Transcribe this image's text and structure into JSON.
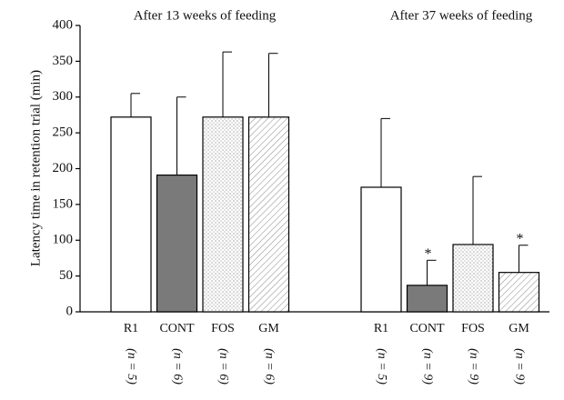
{
  "chart_data": {
    "type": "bar",
    "ylabel": "Latency time in retention trial (min)",
    "ylim": [
      0,
      400
    ],
    "yticks": [
      0,
      50,
      100,
      150,
      200,
      250,
      300,
      350,
      400
    ],
    "patterns": [
      "white",
      "solid",
      "dots",
      "hatch"
    ],
    "solid_color": "#7a7a7a",
    "groups": [
      {
        "title": "After 13 weeks of feeding",
        "categories": [
          "R1",
          "CONT",
          "FOS",
          "GM"
        ],
        "sample_sizes": [
          "(n = 5)",
          "(n = 6)",
          "(n = 6)",
          "(n = 6)"
        ],
        "values": [
          272,
          191,
          272,
          272
        ],
        "errors": [
          33,
          109,
          91,
          89
        ],
        "annotations": [
          null,
          null,
          null,
          null
        ]
      },
      {
        "title": "After 37 weeks of feeding",
        "categories": [
          "R1",
          "CONT",
          "FOS",
          "GM"
        ],
        "sample_sizes": [
          "(n = 5)",
          "(n = 9)",
          "(n = 9)",
          "(n = 9)"
        ],
        "values": [
          174,
          37,
          94,
          55
        ],
        "errors": [
          96,
          35,
          95,
          38
        ],
        "annotations": [
          null,
          "*",
          null,
          "*"
        ]
      }
    ]
  }
}
